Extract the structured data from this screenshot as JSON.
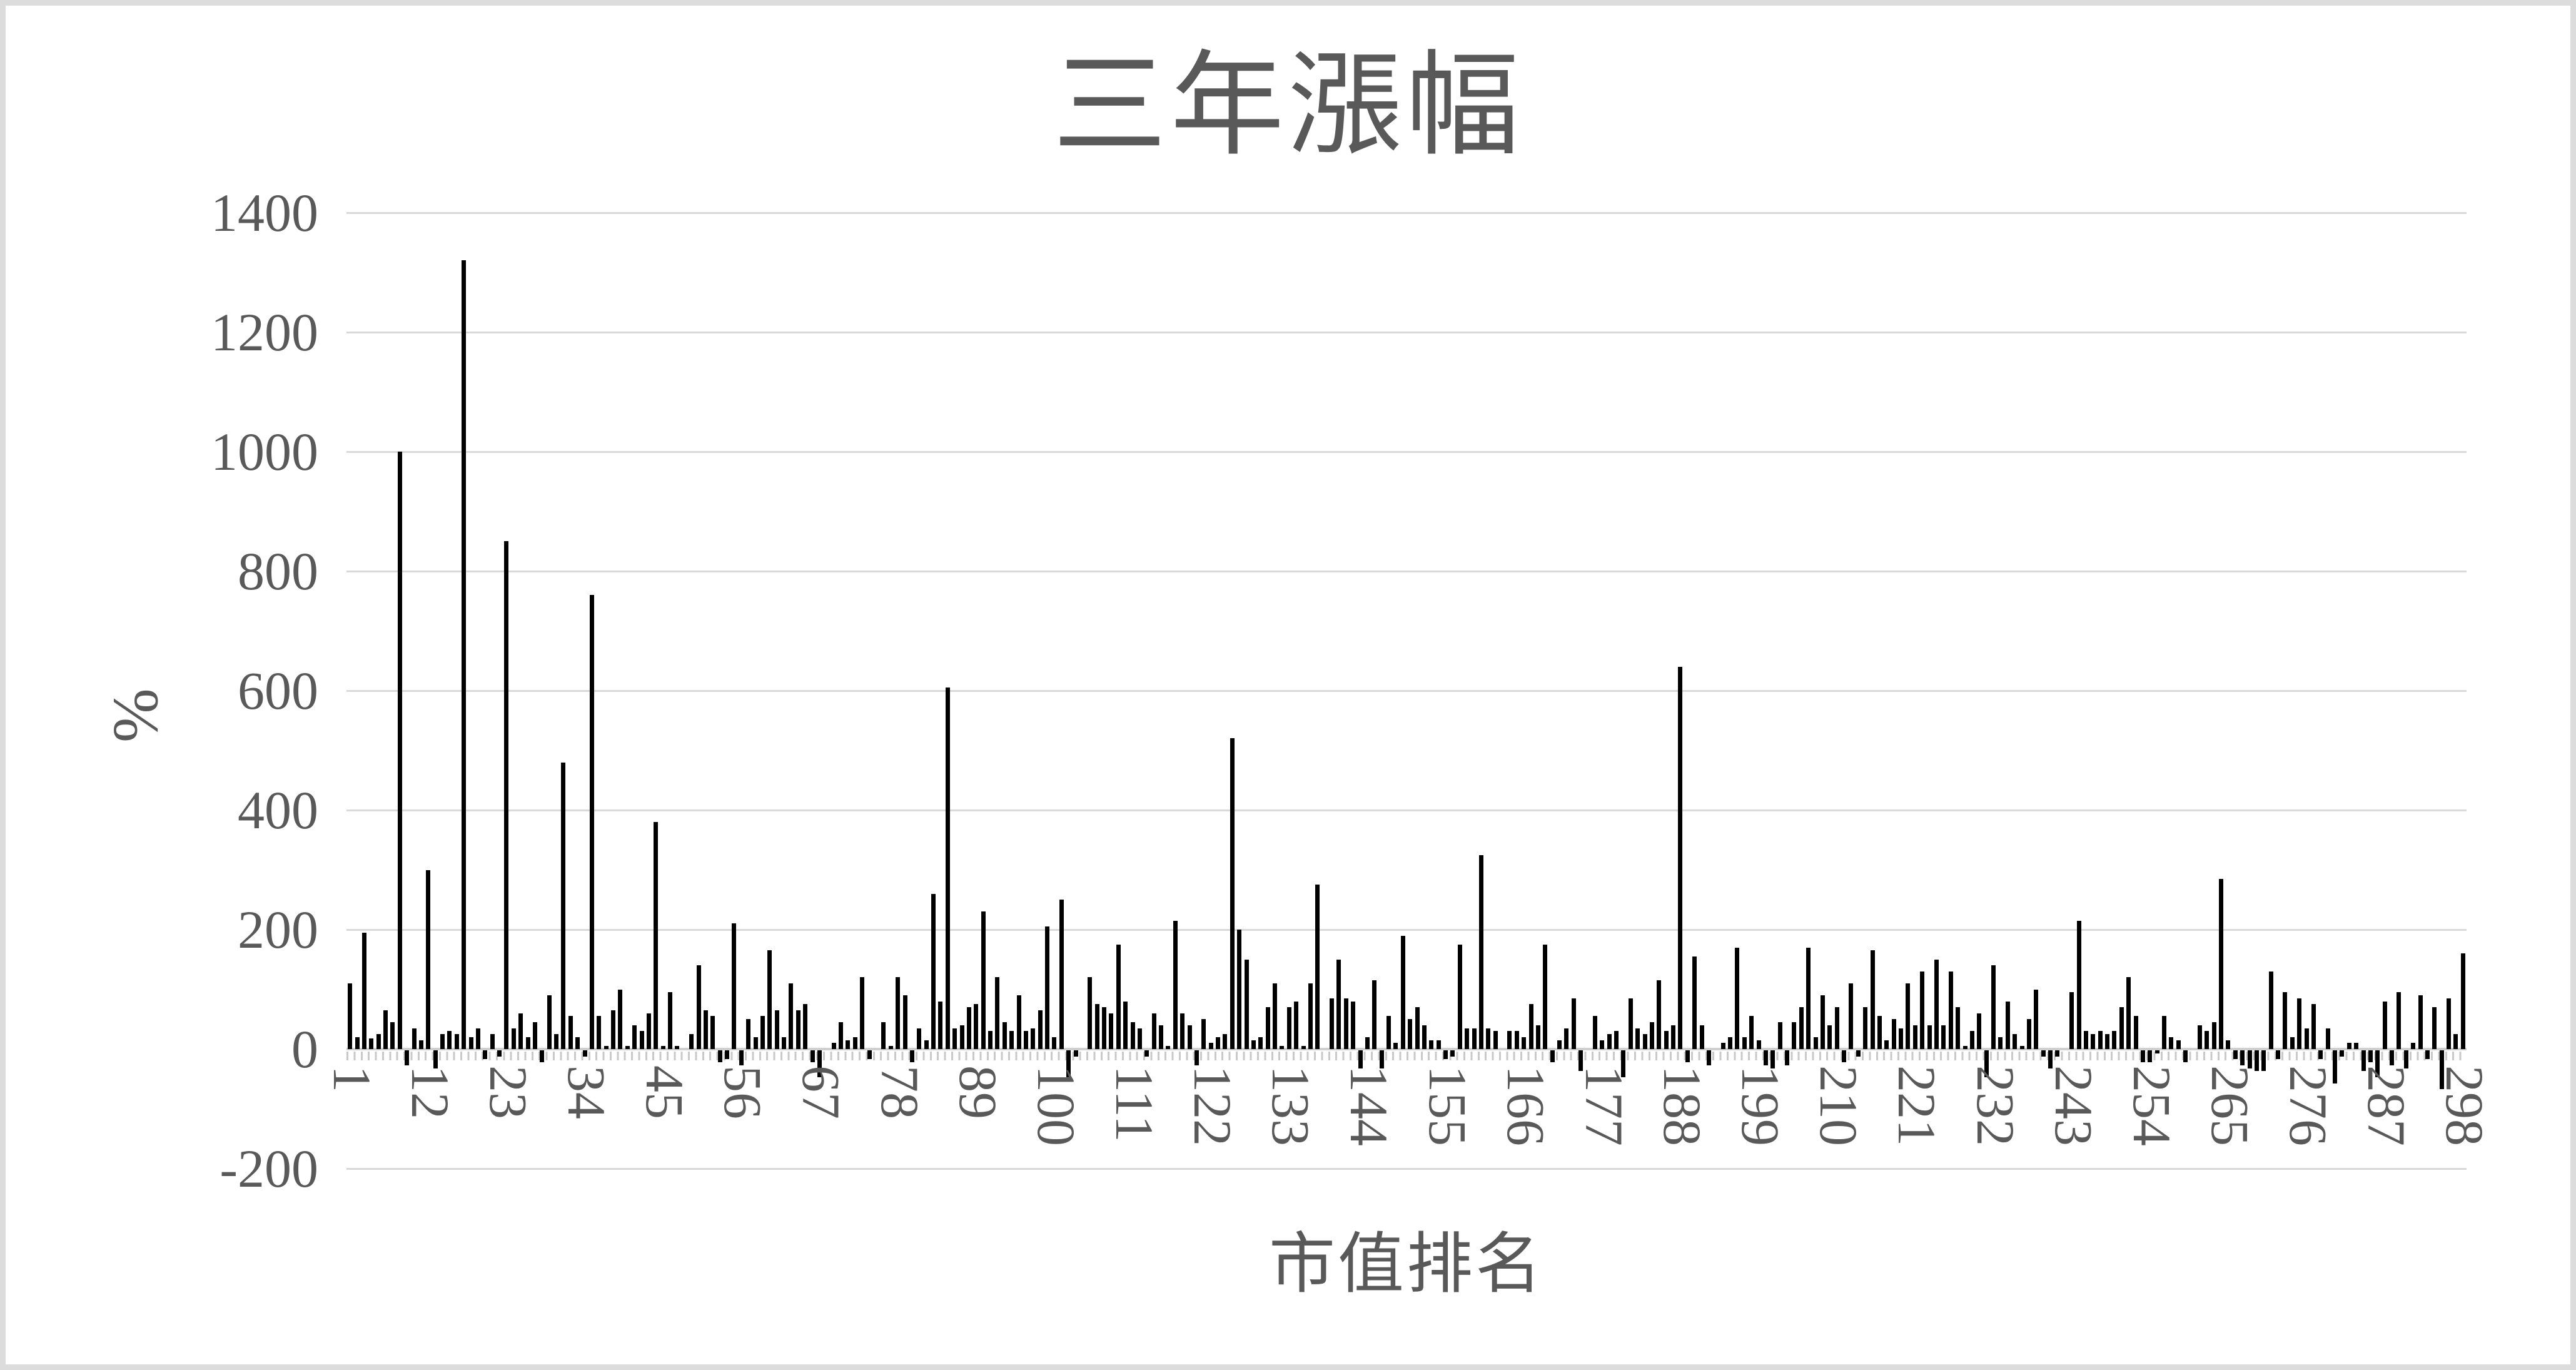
{
  "chart": {
    "title": "三年漲幅",
    "y_axis_title": "%",
    "x_axis_title": "市值排名"
  },
  "colors": {
    "bar": "#000000",
    "gridline": "#d9d9d9",
    "axis_line": "#cfcfcf",
    "text": "#595959",
    "frame": "#dcdcdc",
    "background": "#ffffff"
  },
  "chart_data": {
    "type": "bar",
    "title": "三年漲幅",
    "xlabel": "市值排名",
    "ylabel": "%",
    "ylim": [
      -200,
      1400
    ],
    "grid": true,
    "legend": false,
    "y_ticks": [
      1400,
      1200,
      1000,
      800,
      600,
      400,
      200,
      0,
      -200
    ],
    "x_tick_labels": [
      1,
      12,
      23,
      34,
      45,
      56,
      67,
      78,
      89,
      100,
      111,
      122,
      133,
      144,
      155,
      166,
      177,
      188,
      199,
      210,
      221,
      232,
      243,
      254,
      265,
      276,
      287,
      298
    ],
    "x_range": [
      1,
      298
    ],
    "values": [
      110,
      20,
      195,
      18,
      25,
      65,
      45,
      1000,
      -25,
      35,
      15,
      300,
      -30,
      25,
      30,
      25,
      1320,
      20,
      35,
      -15,
      25,
      -10,
      850,
      35,
      60,
      20,
      45,
      -20,
      90,
      25,
      480,
      55,
      20,
      -10,
      760,
      55,
      5,
      65,
      100,
      5,
      40,
      30,
      60,
      380,
      5,
      95,
      5,
      0,
      25,
      140,
      65,
      55,
      -20,
      -15,
      210,
      -25,
      50,
      20,
      55,
      165,
      65,
      20,
      110,
      65,
      75,
      -20,
      -45,
      0,
      10,
      45,
      15,
      20,
      120,
      -15,
      0,
      45,
      5,
      120,
      90,
      -20,
      35,
      15,
      260,
      80,
      605,
      35,
      40,
      70,
      75,
      230,
      30,
      120,
      45,
      30,
      90,
      30,
      35,
      65,
      205,
      20,
      250,
      -45,
      -10,
      0,
      120,
      75,
      70,
      60,
      175,
      80,
      45,
      35,
      -10,
      60,
      40,
      5,
      215,
      60,
      40,
      -25,
      50,
      10,
      20,
      25,
      520,
      200,
      150,
      15,
      20,
      70,
      110,
      5,
      70,
      80,
      5,
      110,
      275,
      0,
      85,
      150,
      85,
      80,
      -30,
      20,
      115,
      -30,
      55,
      10,
      190,
      50,
      70,
      40,
      15,
      15,
      -15,
      -10,
      175,
      35,
      35,
      325,
      35,
      30,
      0,
      30,
      30,
      20,
      75,
      40,
      175,
      -20,
      15,
      35,
      85,
      -35,
      0,
      55,
      15,
      25,
      30,
      -45,
      85,
      35,
      25,
      45,
      115,
      30,
      40,
      640,
      -20,
      155,
      40,
      -25,
      0,
      10,
      20,
      170,
      20,
      55,
      15,
      -25,
      -30,
      45,
      -25,
      45,
      70,
      170,
      20,
      90,
      40,
      70,
      -20,
      110,
      -10,
      70,
      165,
      55,
      15,
      50,
      35,
      110,
      40,
      130,
      40,
      150,
      40,
      130,
      70,
      5,
      30,
      60,
      -45,
      140,
      20,
      80,
      25,
      5,
      50,
      100,
      -10,
      -30,
      -10,
      0,
      95,
      215,
      30,
      25,
      30,
      25,
      30,
      70,
      120,
      55,
      -20,
      -20,
      -5,
      55,
      20,
      15,
      -20,
      0,
      40,
      30,
      45,
      285,
      15,
      -15,
      -25,
      -30,
      -35,
      -35,
      130,
      -15,
      95,
      20,
      85,
      35,
      75,
      -15,
      35,
      -55,
      -10,
      10,
      10,
      -35,
      -20,
      -45,
      80,
      -25,
      95,
      -30,
      10,
      90,
      -15,
      70,
      -65,
      85,
      25,
      160
    ]
  }
}
